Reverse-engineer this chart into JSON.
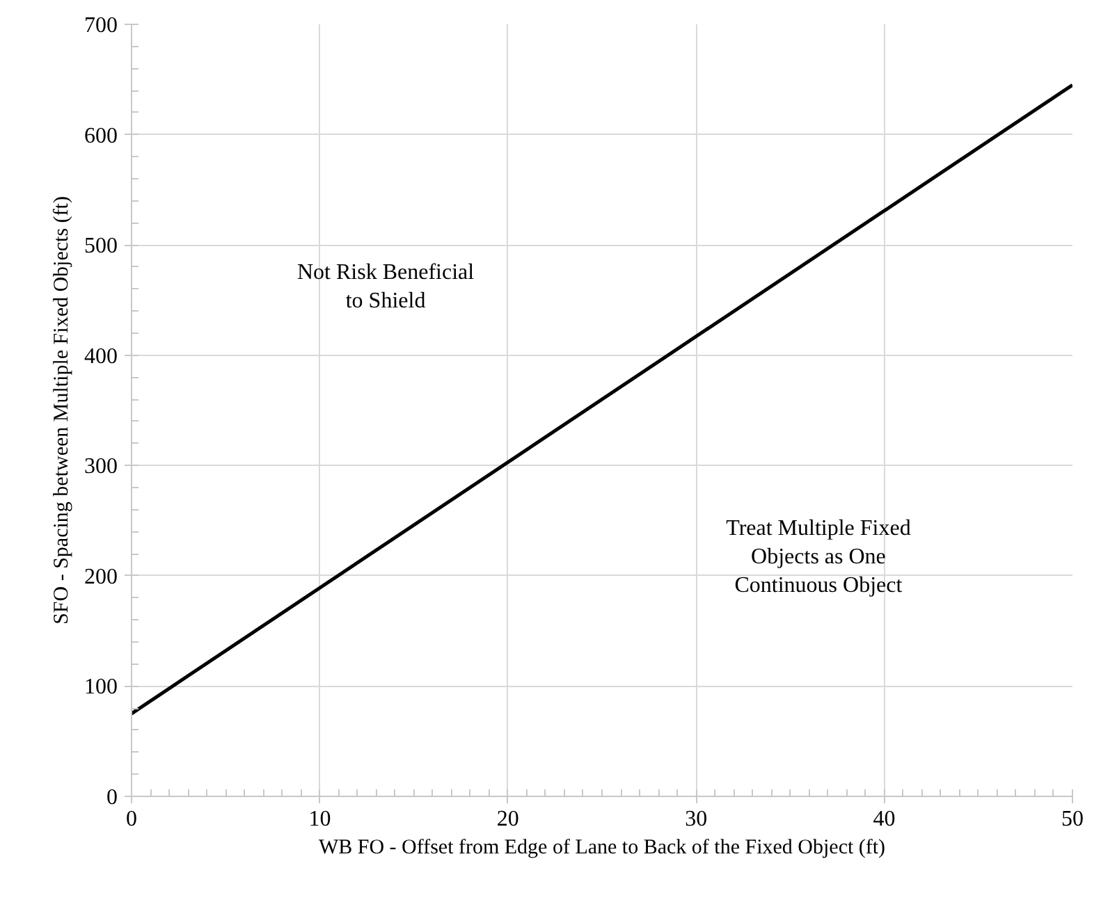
{
  "chart_data": {
    "type": "line",
    "xlabel": "WB FO - Offset from Edge of Lane to Back of the Fixed Object (ft)",
    "ylabel": "SFO - Spacing between Multiple Fixed Objects (ft)",
    "x": [
      0,
      50
    ],
    "series": [
      {
        "color": "#000000",
        "values": [
          75,
          645
        ]
      }
    ],
    "xlim": [
      0,
      50
    ],
    "ylim": [
      0,
      700
    ],
    "xticks": [
      0,
      10,
      20,
      30,
      40,
      50
    ],
    "yticks": [
      0,
      100,
      200,
      300,
      400,
      500,
      600,
      700
    ],
    "grid": true,
    "marker": "none",
    "line_style": "solid",
    "annotations": [
      "Not Risk Beneficial\nto Shield",
      "Treat Multiple Fixed\nObjects as One\nContinuous Object"
    ]
  }
}
